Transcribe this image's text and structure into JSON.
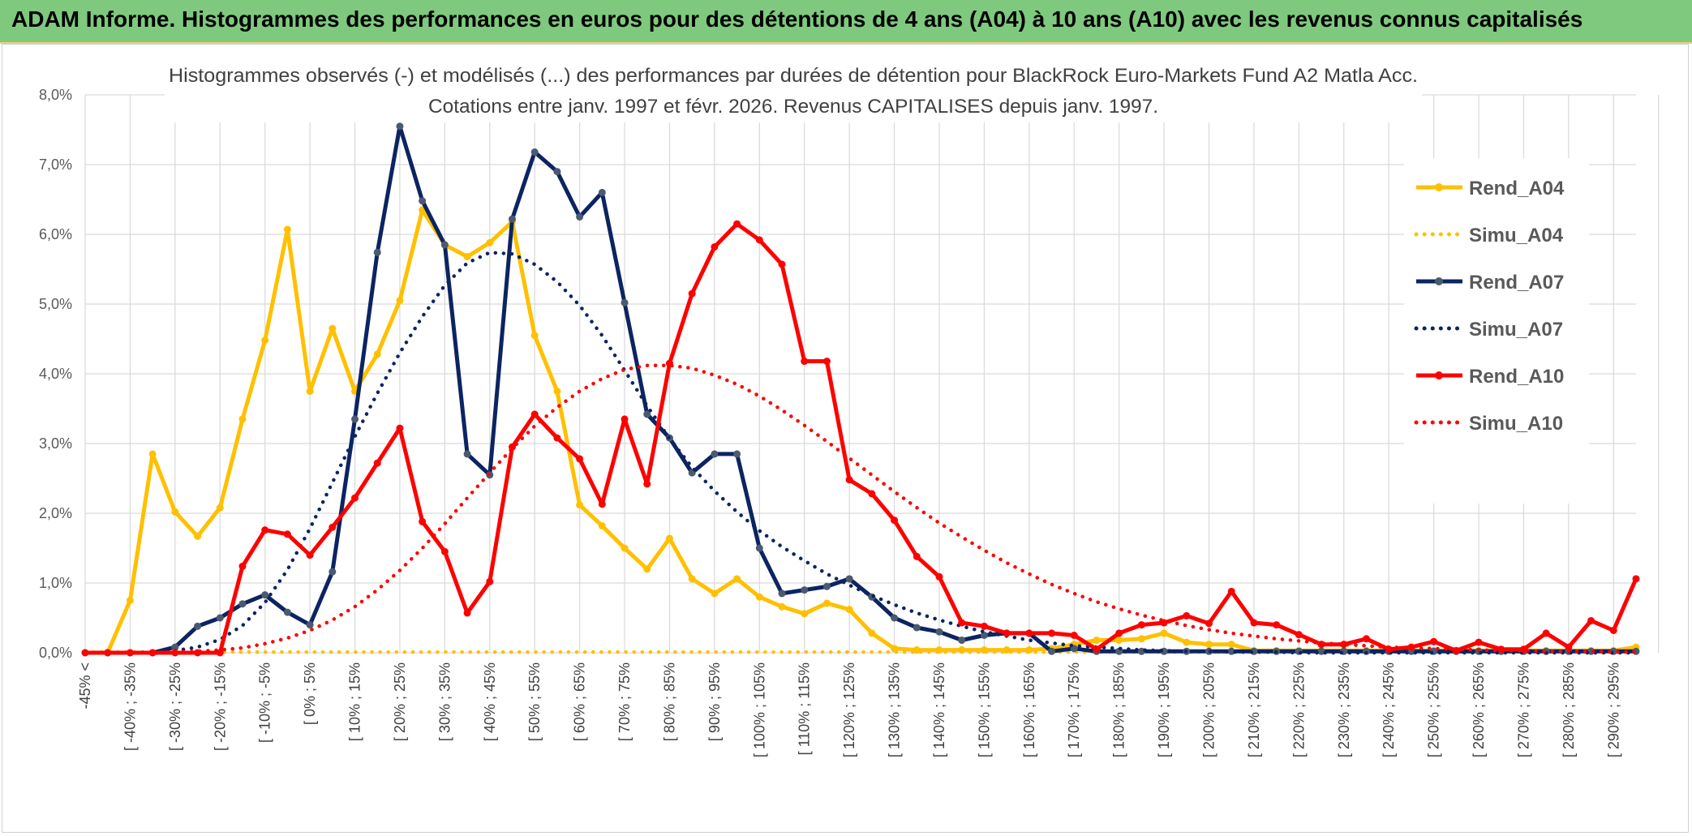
{
  "header": {
    "title": "ADAM Informe. Histogrammes des performances en euros pour des détentions de 4 ans (A04) à 10 ans (A10) avec les revenus connus capitalisés"
  },
  "chart_data": {
    "type": "line",
    "title": "Histogrammes observés (-) et modélisés (...) des performances par durées de détention pour BlackRock Euro-Markets Fund A2 Matla Acc.",
    "subtitle": "Cotations entre janv. 1997 et févr. 2026. Revenus CAPITALISES depuis janv. 1997.",
    "xlabel": "",
    "ylabel": "",
    "ylim": [
      0,
      8
    ],
    "yticks": [
      "0,0%",
      "1,0%",
      "2,0%",
      "3,0%",
      "4,0%",
      "5,0%",
      "6,0%",
      "7,0%",
      "8,0%"
    ],
    "grid": true,
    "legend_position": "right",
    "x_tick_labels": [
      "-45% <",
      "[ -40% ; -35%",
      "[ -30% ; -25%",
      "[ -20% ; -15%",
      "[ -10% ; -5%",
      "[ 0% ; 5%",
      "[ 10% ; 15%",
      "[ 20% ; 25%",
      "[ 30% ; 35%",
      "[ 40% ; 45%",
      "[ 50% ; 55%",
      "[ 60% ; 65%",
      "[ 70% ; 75%",
      "[ 80% ; 85%",
      "[ 90% ; 95%",
      "[ 100% ; 105%",
      "[ 110% ; 115%",
      "[ 120% ; 125%",
      "[ 130% ; 135%",
      "[ 140% ; 145%",
      "[ 150% ; 155%",
      "[ 160% ; 165%",
      "[ 170% ; 175%",
      "[ 180% ; 185%",
      "[ 190% ; 195%",
      "[ 200% ; 205%",
      "[ 210% ; 215%",
      "[ 220% ; 225%",
      "[ 230% ; 235%",
      "[ 240% ; 245%",
      "[ 250% ; 255%",
      "[ 260% ; 265%",
      "[ 270% ; 275%",
      "[ 280% ; 285%",
      "[ 290% ; 295%"
    ],
    "n_points": 70,
    "series": [
      {
        "name": "Rend_A04",
        "style": "solid",
        "color": "#ffc000",
        "values": [
          0,
          0,
          0.75,
          2.85,
          2.02,
          1.67,
          2.08,
          3.35,
          4.48,
          6.07,
          3.75,
          4.65,
          3.75,
          4.28,
          5.05,
          6.35,
          5.85,
          5.68,
          5.88,
          6.18,
          4.55,
          3.75,
          2.12,
          1.82,
          1.5,
          1.2,
          1.64,
          1.06,
          0.85,
          1.06,
          0.8,
          0.66,
          0.56,
          0.71,
          0.62,
          0.28,
          0.06,
          0.04,
          0.04,
          0.04,
          0.04,
          0.04,
          0.04,
          0.06,
          0.12,
          0.18,
          0.18,
          0.2,
          0.28,
          0.15,
          0.12,
          0.12,
          0.03,
          0.03,
          0.03,
          0.03,
          0.03,
          0.03,
          0.03,
          0.03,
          0.03,
          0.03,
          0.03,
          0.03,
          0.03,
          0.03,
          0.03,
          0.03,
          0.03,
          0.08
        ]
      },
      {
        "name": "Simu_A04",
        "style": "dotted",
        "color": "#ffc000",
        "values": [
          0.01,
          0.01,
          0.01,
          0.01,
          0.01,
          0.01,
          0.01,
          0.01,
          0.01,
          0.01,
          0.01,
          0.01,
          0.01,
          0.01,
          0.01,
          0.01,
          0.01,
          0.01,
          0.01,
          0.01,
          0.01,
          0.01,
          0.01,
          0.01,
          0.01,
          0.01,
          0.01,
          0.01,
          0.01,
          0.01,
          0.01,
          0.01,
          0.01,
          0.01,
          0.01,
          0.01,
          0.01,
          0.01,
          0.01,
          0.01,
          0.01,
          0.01,
          0.01,
          0.01,
          0.01,
          0.01,
          0.01,
          0.01,
          0.01,
          0.01,
          0.01,
          0.01,
          0.01,
          0.01,
          0.01,
          0.01,
          0.01,
          0.01,
          0.01,
          0.01,
          0.01,
          0.01,
          0.01,
          0.01,
          0.01,
          0.01,
          0.01,
          0.01,
          0.01,
          0.01
        ]
      },
      {
        "name": "Rend_A07",
        "style": "solid",
        "color": "#0c2461",
        "values": [
          0,
          0,
          0,
          0,
          0.08,
          0.38,
          0.5,
          0.7,
          0.83,
          0.58,
          0.4,
          1.16,
          3.35,
          5.74,
          7.55,
          6.48,
          5.85,
          2.85,
          2.55,
          6.22,
          7.18,
          6.9,
          6.25,
          6.6,
          5.02,
          3.42,
          3.08,
          2.58,
          2.85,
          2.85,
          1.5,
          0.85,
          0.9,
          0.95,
          1.06,
          0.8,
          0.5,
          0.36,
          0.3,
          0.18,
          0.25,
          0.28,
          0.28,
          0.02,
          0.06,
          0.02,
          0.02,
          0.02,
          0.02,
          0.02,
          0.02,
          0.02,
          0.02,
          0.02,
          0.02,
          0.02,
          0.02,
          0.02,
          0.02,
          0.02,
          0.02,
          0.02,
          0.02,
          0.02,
          0.02,
          0.02,
          0.02,
          0.02,
          0.02,
          0.02
        ]
      },
      {
        "name": "Simu_A07",
        "style": "dotted",
        "color": "#0c2461",
        "values": [
          0,
          0,
          0,
          0.01,
          0.03,
          0.08,
          0.19,
          0.39,
          0.72,
          1.19,
          1.78,
          2.44,
          3.1,
          3.72,
          4.3,
          4.82,
          5.27,
          5.59,
          5.74,
          5.72,
          5.57,
          5.32,
          4.98,
          4.55,
          4.05,
          3.54,
          3.07,
          2.66,
          2.32,
          2.02,
          1.75,
          1.52,
          1.32,
          1.13,
          0.97,
          0.82,
          0.69,
          0.57,
          0.47,
          0.38,
          0.3,
          0.24,
          0.18,
          0.14,
          0.1,
          0.08,
          0.06,
          0.04,
          0.03,
          0.02,
          0.02,
          0.01,
          0.01,
          0.01,
          0,
          0,
          0,
          0,
          0,
          0,
          0,
          0,
          0,
          0,
          0,
          0,
          0,
          0,
          0,
          0
        ]
      },
      {
        "name": "Rend_A10",
        "style": "solid",
        "color": "#ff0000",
        "values": [
          0,
          0,
          0,
          0,
          0,
          0,
          0,
          1.24,
          1.76,
          1.7,
          1.4,
          1.8,
          2.22,
          2.72,
          3.22,
          1.88,
          1.45,
          0.57,
          1.02,
          2.95,
          3.42,
          3.08,
          2.78,
          2.13,
          3.35,
          2.42,
          4.15,
          5.15,
          5.82,
          6.15,
          5.92,
          5.57,
          4.18,
          4.18,
          2.48,
          2.28,
          1.9,
          1.38,
          1.09,
          0.43,
          0.38,
          0.28,
          0.28,
          0.28,
          0.25,
          0.05,
          0.28,
          0.4,
          0.43,
          0.53,
          0.42,
          0.88,
          0.43,
          0.4,
          0.26,
          0.12,
          0.12,
          0.2,
          0.05,
          0.08,
          0.16,
          0.03,
          0.15,
          0.05,
          0.05,
          0.28,
          0.08,
          0.46,
          0.32,
          1.06
        ]
      },
      {
        "name": "Simu_A10",
        "style": "dotted",
        "color": "#ff0000",
        "values": [
          0,
          0,
          0,
          0,
          0.01,
          0.02,
          0.04,
          0.07,
          0.13,
          0.21,
          0.32,
          0.47,
          0.66,
          0.9,
          1.18,
          1.5,
          1.85,
          2.22,
          2.58,
          2.93,
          3.25,
          3.52,
          3.75,
          3.93,
          4.06,
          4.12,
          4.12,
          4.08,
          3.98,
          3.85,
          3.68,
          3.48,
          3.26,
          3.03,
          2.79,
          2.55,
          2.31,
          2.08,
          1.86,
          1.66,
          1.47,
          1.29,
          1.13,
          0.98,
          0.85,
          0.73,
          0.63,
          0.54,
          0.46,
          0.39,
          0.33,
          0.28,
          0.24,
          0.2,
          0.17,
          0.14,
          0.12,
          0.1,
          0.08,
          0.07,
          0.06,
          0.05,
          0.04,
          0.03,
          0.03,
          0.02,
          0.02,
          0.02,
          0.01,
          0.01
        ]
      }
    ]
  }
}
